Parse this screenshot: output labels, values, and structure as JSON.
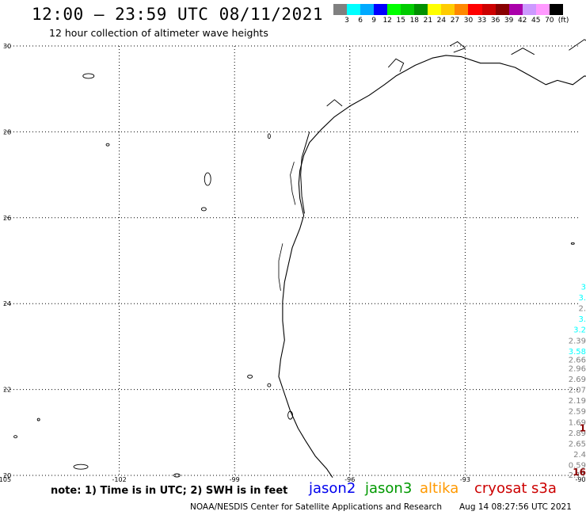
{
  "header": {
    "title": "12:00 – 23:59 UTC 08/11/2021",
    "subtitle": "12 hour collection of altimeter wave heights"
  },
  "color_scale": {
    "unit": "(ft)",
    "swatches": [
      "#808080",
      "#00ffff",
      "#00aaff",
      "#0000ff",
      "#00ff00",
      "#00cc00",
      "#009000",
      "#ffff00",
      "#ffcc00",
      "#ff8800",
      "#ff0000",
      "#cc0000",
      "#880000",
      "#aa00aa",
      "#cc99ff",
      "#ff99ff",
      "#000000"
    ],
    "labels": [
      "3",
      "6",
      "9",
      "12",
      "15",
      "18",
      "21",
      "24",
      "27",
      "30",
      "33",
      "36",
      "39",
      "42",
      "45",
      "70"
    ]
  },
  "map": {
    "lat_labels": [
      "30",
      "28",
      "26",
      "24",
      "22",
      "20"
    ],
    "lon_labels": [
      "-105",
      "-102",
      "-99",
      "-96",
      "-93",
      "-90"
    ],
    "wave_labels": [
      {
        "text": "3",
        "lat": 24.4,
        "color": "#00ffff"
      },
      {
        "text": "3.",
        "lat": 24.15,
        "color": "#00ffff"
      },
      {
        "text": "2.",
        "lat": 23.9,
        "color": "#808080"
      },
      {
        "text": "3.",
        "lat": 23.65,
        "color": "#00ffff"
      },
      {
        "text": "3.2",
        "lat": 23.4,
        "color": "#00ffff"
      },
      {
        "text": "2.39",
        "lat": 23.15,
        "color": "#808080"
      },
      {
        "text": "3.58",
        "lat": 22.9,
        "color": "#00ffff"
      },
      {
        "text": "2.66",
        "lat": 22.7,
        "color": "#808080"
      },
      {
        "text": "2.96",
        "lat": 22.5,
        "color": "#808080"
      },
      {
        "text": "2.69",
        "lat": 22.25,
        "color": "#808080"
      },
      {
        "text": "2.07",
        "lat": 22.0,
        "color": "#808080"
      },
      {
        "text": "2.19",
        "lat": 21.75,
        "color": "#808080"
      },
      {
        "text": "2.59",
        "lat": 21.5,
        "color": "#808080"
      },
      {
        "text": "1.69",
        "lat": 21.25,
        "color": "#808080"
      },
      {
        "text": "2.89",
        "lat": 21.0,
        "color": "#808080"
      },
      {
        "text": "2.65",
        "lat": 20.75,
        "color": "#808080"
      },
      {
        "text": "2.4",
        "lat": 20.5,
        "color": "#808080"
      },
      {
        "text": "0.59",
        "lat": 20.25,
        "color": "#808080"
      },
      {
        "text": "2.11",
        "lat": 20.02,
        "color": "#808080"
      },
      {
        "text": "1",
        "lat": 21.1,
        "color": "#880000"
      },
      {
        "text": "16",
        "lat": 20.07,
        "color": "#880000"
      }
    ]
  },
  "footer": {
    "note": "note:  1)  Time is in UTC;  2)  SWH is in feet",
    "missions": [
      {
        "name": "jason2",
        "color": "#0000ee"
      },
      {
        "name": "jason3",
        "color": "#009900"
      },
      {
        "name": "altika",
        "color": "#ff9900"
      },
      {
        "name": "cryosat",
        "color": "#cc0000"
      },
      {
        "name": "s3a",
        "color": "#cc0000"
      }
    ],
    "credit": "NOAA/NESDIS Center for Satellite Applications and Research",
    "timestamp": "Aug 14 08:27:56 UTC 2021"
  }
}
